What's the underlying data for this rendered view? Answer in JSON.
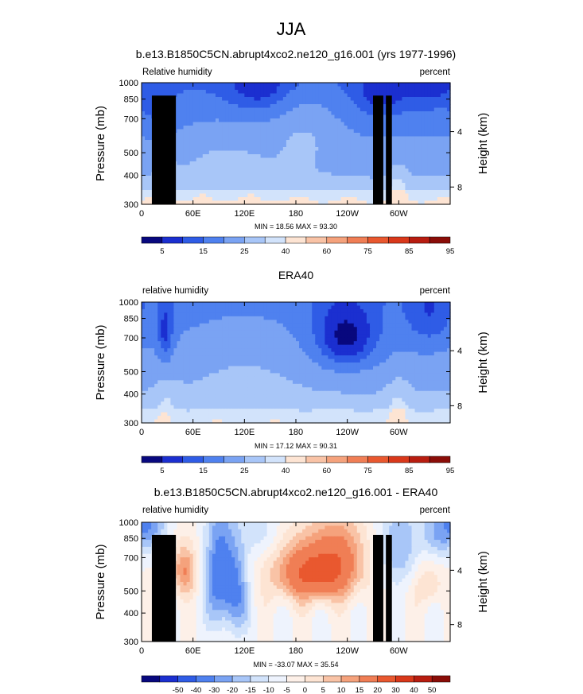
{
  "figure": {
    "title": "JJA"
  },
  "colors": {
    "rh_scale": [
      "#08087e",
      "#1b2fd0",
      "#2f5ce6",
      "#4f81ef",
      "#7aa3f3",
      "#a8c6f8",
      "#d2e3fb",
      "#fde4d3",
      "#f9c3a6",
      "#f5a27c",
      "#f07e55",
      "#e9582f",
      "#d9381a",
      "#b81d10",
      "#8a0d08"
    ],
    "diff_scale": [
      "#08087e",
      "#1b2fd0",
      "#2f5ce6",
      "#4f81ef",
      "#7aa3f3",
      "#a8c6f8",
      "#d2e3fb",
      "#eef3fd",
      "#fdf0e8",
      "#fde4d3",
      "#f9c3a6",
      "#f5a27c",
      "#f07e55",
      "#e9582f",
      "#d9381a",
      "#b81d10",
      "#8a0d08"
    ],
    "topography": "#000000"
  },
  "chart_data": [
    {
      "type": "heatmap",
      "title": "b.e13.B1850C5CN.abrupt4xco2.ne120_g16.001 (yrs 1977-1996)",
      "left_label": "Relative humidity",
      "right_label": "percent",
      "ylabel": "Pressure (mb)",
      "y2label": "Height (km)",
      "yticks": [
        "300",
        "400",
        "500",
        "700",
        "850",
        "1000"
      ],
      "y2ticks": [
        "8",
        "4"
      ],
      "xticks": [
        "0",
        "60E",
        "120E",
        "180",
        "120W",
        "60W"
      ],
      "xlim": [
        0,
        360
      ],
      "ylim": [
        1000,
        300
      ],
      "min": "18.56",
      "max": "93.30",
      "stats_text": "MIN =  18.56  MAX =  93.30",
      "levels": [
        "5",
        "15",
        "25",
        "40",
        "60",
        "75",
        "85",
        "95"
      ]
    },
    {
      "type": "heatmap",
      "title": "ERA40",
      "left_label": "relative humidity",
      "right_label": "percent",
      "ylabel": "Pressure (mb)",
      "y2label": "Height (km)",
      "yticks": [
        "300",
        "400",
        "500",
        "700",
        "850",
        "1000"
      ],
      "y2ticks": [
        "8",
        "4"
      ],
      "xticks": [
        "0",
        "60E",
        "120E",
        "180",
        "120W",
        "60W"
      ],
      "xlim": [
        0,
        360
      ],
      "ylim": [
        1000,
        300
      ],
      "min": "17.12",
      "max": "90.31",
      "stats_text": "MIN =  17.12  MAX =  90.31",
      "levels": [
        "5",
        "15",
        "25",
        "40",
        "60",
        "75",
        "85",
        "95"
      ]
    },
    {
      "type": "heatmap",
      "title": "b.e13.B1850C5CN.abrupt4xco2.ne120_g16.001 - ERA40",
      "left_label": "relative humidity",
      "right_label": "percent",
      "ylabel": "Pressure (mb)",
      "y2label": "Height (km)",
      "yticks": [
        "300",
        "400",
        "500",
        "700",
        "850",
        "1000"
      ],
      "y2ticks": [
        "8",
        "4"
      ],
      "xticks": [
        "0",
        "60E",
        "120E",
        "180",
        "120W",
        "60W"
      ],
      "xlim": [
        0,
        360
      ],
      "ylim": [
        1000,
        300
      ],
      "min": "-33.07",
      "max": "35.54",
      "stats_text": "MIN = -33.07  MAX =  35.54",
      "levels": [
        "-50",
        "-40",
        "-30",
        "-20",
        "-15",
        "-10",
        "-5",
        "0",
        "5",
        "10",
        "15",
        "20",
        "30",
        "40",
        "50"
      ]
    }
  ]
}
